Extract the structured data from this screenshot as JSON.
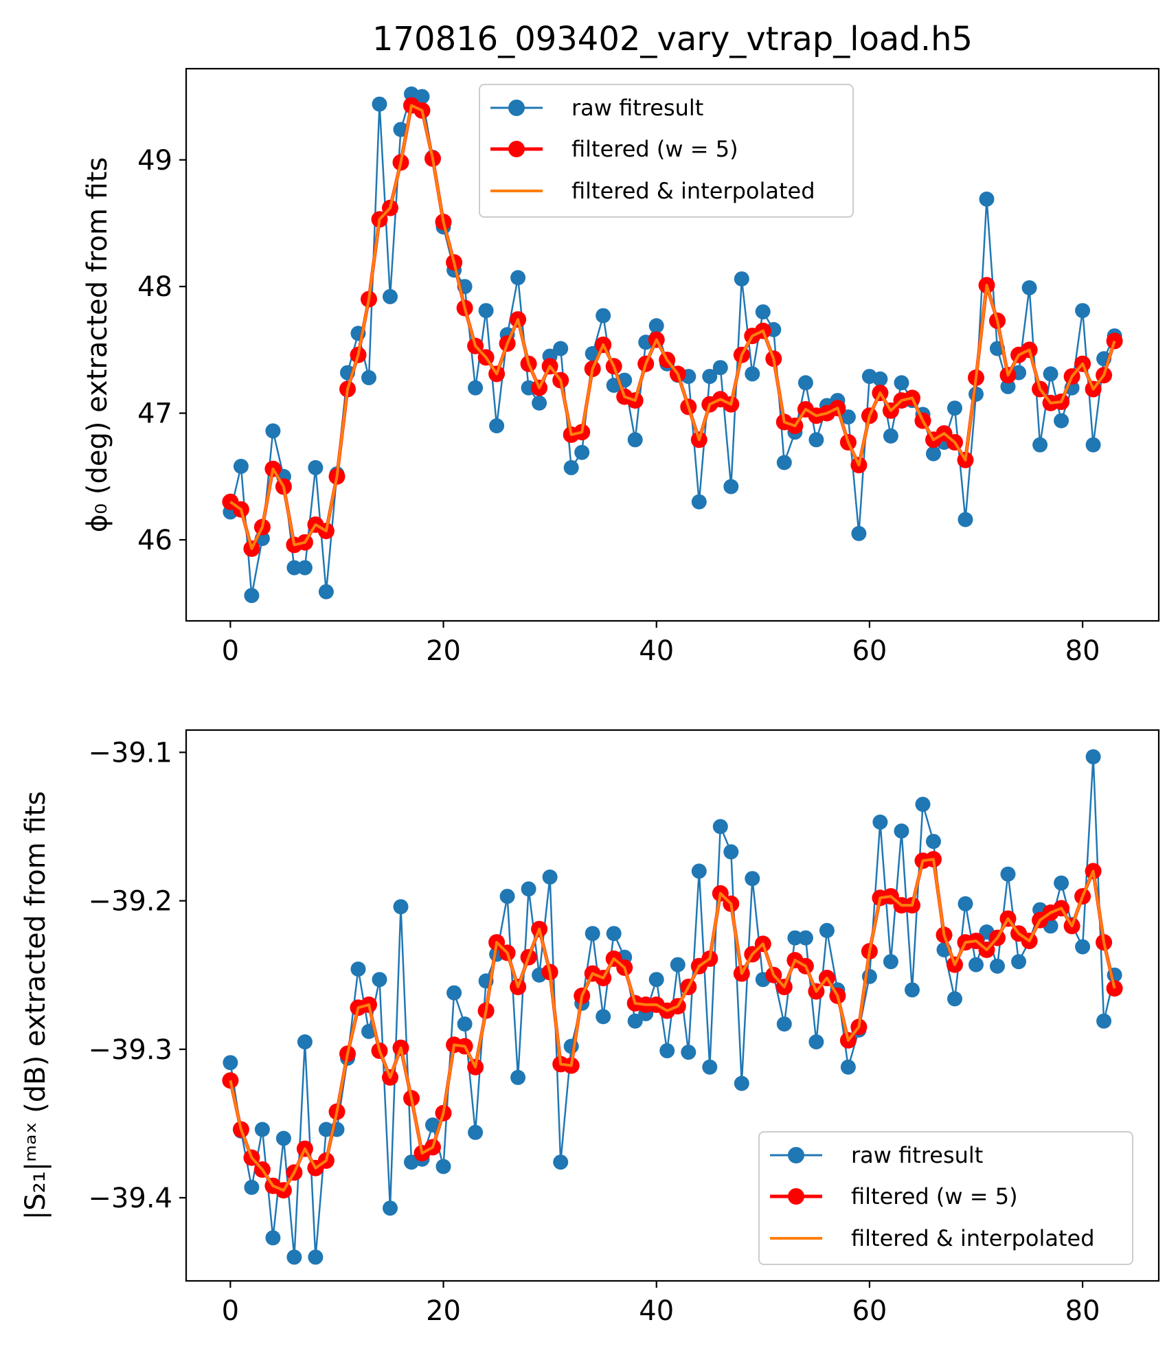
{
  "chart_data": [
    {
      "type": "line",
      "title": "170816_093402_vary_vtrap_load.h5",
      "xlabel": "",
      "ylabel": "ϕ₀ (deg) extracted from fits",
      "xlim": [
        -4.15,
        87.15
      ],
      "ylim": [
        45.36,
        49.72
      ],
      "xticks": [
        0,
        20,
        40,
        60,
        80
      ],
      "yticks": [
        46,
        47,
        48,
        49
      ],
      "xtick_labels": [
        "0",
        "20",
        "40",
        "60",
        "80"
      ],
      "ytick_labels": [
        "46",
        "47",
        "48",
        "49"
      ],
      "legend_position": "upper-center",
      "grid": false,
      "series": [
        {
          "name": "raw fitresult",
          "color": "#1f77b4",
          "marker": "circle",
          "values": [
            46.22,
            46.58,
            45.56,
            46.01,
            46.86,
            46.5,
            45.78,
            45.78,
            46.57,
            45.59,
            46.52,
            47.32,
            47.63,
            47.28,
            49.44,
            47.92,
            49.24,
            49.52,
            49.5,
            49.02,
            48.47,
            48.13,
            48.0,
            47.2,
            47.81,
            46.9,
            47.62,
            48.07,
            47.2,
            47.08,
            47.45,
            47.51,
            46.57,
            46.69,
            47.47,
            47.77,
            47.22,
            47.26,
            46.79,
            47.56,
            47.69,
            47.39,
            47.3,
            47.29,
            46.3,
            47.29,
            47.36,
            46.42,
            48.06,
            47.31,
            47.8,
            47.66,
            46.61,
            46.85,
            47.24,
            46.79,
            47.06,
            47.1,
            46.97,
            46.05,
            47.29,
            47.27,
            46.82,
            47.24,
            47.1,
            46.99,
            46.68,
            46.77,
            47.04,
            46.16,
            47.15,
            48.69,
            47.51,
            47.21,
            47.32,
            47.99,
            46.75,
            47.31,
            46.94,
            47.2,
            47.81,
            46.75,
            47.43,
            47.61
          ]
        },
        {
          "name": "filtered (w = 5)",
          "color": "#ff0000",
          "marker": "circle",
          "values": [
            46.3,
            46.24,
            45.93,
            46.1,
            46.56,
            46.42,
            45.96,
            45.98,
            46.12,
            46.07,
            46.5,
            47.19,
            47.46,
            47.9,
            48.53,
            48.62,
            48.98,
            49.43,
            49.39,
            49.01,
            48.51,
            48.19,
            47.83,
            47.53,
            47.44,
            47.31,
            47.55,
            47.74,
            47.39,
            47.2,
            47.37,
            47.26,
            46.83,
            46.85,
            47.35,
            47.54,
            47.37,
            47.13,
            47.1,
            47.39,
            47.58,
            47.42,
            47.31,
            47.05,
            46.79,
            47.07,
            47.11,
            47.07,
            47.46,
            47.61,
            47.65,
            47.43,
            46.93,
            46.9,
            47.03,
            46.98,
            47.0,
            47.04,
            46.77,
            46.59,
            46.98,
            47.16,
            47.02,
            47.1,
            47.12,
            46.94,
            46.79,
            46.84,
            46.77,
            46.63,
            47.28,
            48.01,
            47.73,
            47.3,
            47.46,
            47.5,
            47.19,
            47.08,
            47.09,
            47.29,
            47.39,
            47.19,
            47.3,
            47.57
          ]
        },
        {
          "name": "filtered & interpolated",
          "color": "#ff7f0e",
          "marker": "none",
          "values": [
            46.3,
            46.24,
            45.93,
            46.1,
            46.56,
            46.42,
            45.96,
            45.98,
            46.12,
            46.07,
            46.5,
            47.19,
            47.46,
            47.9,
            48.53,
            48.62,
            48.98,
            49.43,
            49.39,
            49.01,
            48.51,
            48.19,
            47.83,
            47.53,
            47.44,
            47.31,
            47.55,
            47.74,
            47.39,
            47.2,
            47.37,
            47.26,
            46.83,
            46.85,
            47.35,
            47.54,
            47.37,
            47.13,
            47.1,
            47.39,
            47.58,
            47.42,
            47.31,
            47.05,
            46.79,
            47.07,
            47.11,
            47.07,
            47.46,
            47.61,
            47.65,
            47.43,
            46.93,
            46.9,
            47.03,
            46.98,
            47.0,
            47.04,
            46.77,
            46.59,
            46.98,
            47.16,
            47.02,
            47.1,
            47.12,
            46.94,
            46.79,
            46.84,
            46.77,
            46.63,
            47.28,
            48.01,
            47.73,
            47.3,
            47.46,
            47.5,
            47.19,
            47.08,
            47.09,
            47.29,
            47.39,
            47.19,
            47.3,
            47.57
          ]
        }
      ]
    },
    {
      "type": "line",
      "title": "",
      "xlabel": "",
      "ylabel": "|S₂₁|ᵐᵃˣ (dB) extracted from fits",
      "xlim": [
        -4.15,
        87.15
      ],
      "ylim": [
        -39.456,
        -39.085
      ],
      "xticks": [
        0,
        20,
        40,
        60,
        80
      ],
      "yticks": [
        -39.1,
        -39.2,
        -39.3,
        -39.4
      ],
      "xtick_labels": [
        "0",
        "20",
        "40",
        "60",
        "80"
      ],
      "ytick_labels": [
        "−39.1",
        "−39.2",
        "−39.3",
        "−39.4"
      ],
      "legend_position": "lower-right",
      "grid": false,
      "series": [
        {
          "name": "raw fitresult",
          "color": "#1f77b4",
          "marker": "circle",
          "values": [
            -39.309,
            -39.355,
            -39.393,
            -39.354,
            -39.427,
            -39.36,
            -39.44,
            -39.295,
            -39.44,
            -39.354,
            -39.354,
            -39.306,
            -39.246,
            -39.288,
            -39.253,
            -39.407,
            -39.204,
            -39.376,
            -39.374,
            -39.351,
            -39.379,
            -39.262,
            -39.283,
            -39.356,
            -39.254,
            -39.236,
            -39.197,
            -39.319,
            -39.192,
            -39.25,
            -39.184,
            -39.376,
            -39.298,
            -39.269,
            -39.222,
            -39.278,
            -39.222,
            -39.238,
            -39.281,
            -39.276,
            -39.253,
            -39.301,
            -39.243,
            -39.302,
            -39.18,
            -39.312,
            -39.15,
            -39.167,
            -39.323,
            -39.185,
            -39.253,
            -39.25,
            -39.283,
            -39.225,
            -39.225,
            -39.295,
            -39.22,
            -39.26,
            -39.312,
            -39.287,
            -39.251,
            -39.147,
            -39.241,
            -39.153,
            -39.26,
            -39.135,
            -39.16,
            -39.233,
            -39.266,
            -39.202,
            -39.243,
            -39.221,
            -39.244,
            -39.182,
            -39.241,
            -39.227,
            -39.206,
            -39.217,
            -39.188,
            -39.216,
            -39.231,
            -39.103,
            -39.281,
            -39.25
          ]
        },
        {
          "name": "filtered (w = 5)",
          "color": "#ff0000",
          "marker": "circle",
          "values": [
            -39.321,
            -39.354,
            -39.373,
            -39.381,
            -39.392,
            -39.395,
            -39.383,
            -39.367,
            -39.38,
            -39.375,
            -39.342,
            -39.303,
            -39.272,
            -39.27,
            -39.301,
            -39.319,
            -39.299,
            -39.333,
            -39.37,
            -39.366,
            -39.343,
            -39.297,
            -39.298,
            -39.312,
            -39.274,
            -39.228,
            -39.235,
            -39.258,
            -39.238,
            -39.219,
            -39.248,
            -39.31,
            -39.311,
            -39.264,
            -39.249,
            -39.252,
            -39.239,
            -39.245,
            -39.269,
            -39.27,
            -39.27,
            -39.274,
            -39.271,
            -39.258,
            -39.244,
            -39.239,
            -39.195,
            -39.202,
            -39.249,
            -39.236,
            -39.229,
            -39.25,
            -39.258,
            -39.24,
            -39.244,
            -39.261,
            -39.252,
            -39.264,
            -39.294,
            -39.285,
            -39.234,
            -39.198,
            -39.197,
            -39.203,
            -39.203,
            -39.173,
            -39.172,
            -39.223,
            -39.243,
            -39.228,
            -39.227,
            -39.233,
            -39.225,
            -39.212,
            -39.222,
            -39.227,
            -39.213,
            -39.208,
            -39.205,
            -39.217,
            -39.197,
            -39.18,
            -39.228,
            -39.259
          ]
        },
        {
          "name": "filtered & interpolated",
          "color": "#ff7f0e",
          "marker": "none",
          "values": [
            -39.321,
            -39.354,
            -39.373,
            -39.381,
            -39.392,
            -39.395,
            -39.383,
            -39.367,
            -39.38,
            -39.375,
            -39.342,
            -39.303,
            -39.272,
            -39.27,
            -39.301,
            -39.319,
            -39.299,
            -39.333,
            -39.37,
            -39.366,
            -39.343,
            -39.297,
            -39.298,
            -39.312,
            -39.274,
            -39.228,
            -39.235,
            -39.258,
            -39.238,
            -39.219,
            -39.248,
            -39.31,
            -39.311,
            -39.264,
            -39.249,
            -39.252,
            -39.239,
            -39.245,
            -39.269,
            -39.27,
            -39.27,
            -39.274,
            -39.271,
            -39.258,
            -39.244,
            -39.239,
            -39.195,
            -39.202,
            -39.249,
            -39.236,
            -39.229,
            -39.25,
            -39.258,
            -39.24,
            -39.244,
            -39.261,
            -39.252,
            -39.264,
            -39.294,
            -39.285,
            -39.234,
            -39.198,
            -39.197,
            -39.203,
            -39.203,
            -39.173,
            -39.172,
            -39.223,
            -39.243,
            -39.228,
            -39.227,
            -39.233,
            -39.225,
            -39.212,
            -39.222,
            -39.227,
            -39.213,
            -39.208,
            -39.205,
            -39.217,
            -39.197,
            -39.18,
            -39.228,
            -39.259
          ]
        }
      ]
    }
  ]
}
